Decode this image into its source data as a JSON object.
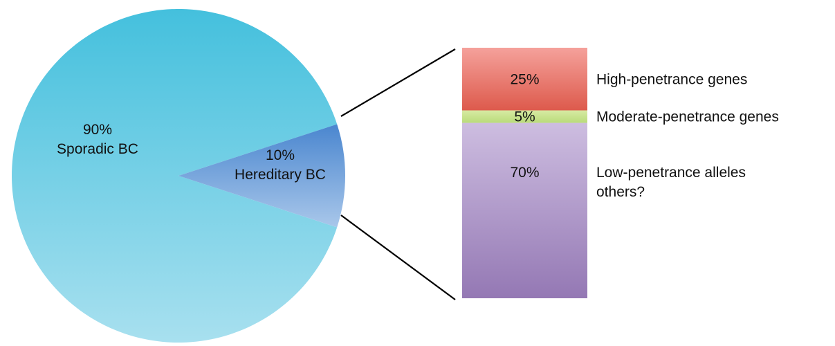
{
  "chart_data": [
    {
      "type": "pie",
      "slices": [
        {
          "label": "Sporadic BC",
          "value": 90,
          "value_label": "90%",
          "color_top": "#44c0dd",
          "color_bottom": "#a8e0ef"
        },
        {
          "label": "Hereditary BC",
          "value": 10,
          "value_label": "10%",
          "color_top": "#4a86cf",
          "color_bottom": "#a9c7ea"
        }
      ]
    },
    {
      "type": "bar",
      "stacked": true,
      "segments": [
        {
          "value": 25,
          "value_label": "25%",
          "label": "High-penetrance genes",
          "color_top": "#f5a19b",
          "color_bottom": "#dd5a4c"
        },
        {
          "value": 5,
          "value_label": "5%",
          "label": "Moderate-penetrance genes",
          "color_top": "#d7eaa3",
          "color_bottom": "#b9db7a"
        },
        {
          "value": 70,
          "value_label": "70%",
          "label": "Low-penetrance alleles",
          "label_line2": "others?",
          "color_top": "#cdbde0",
          "color_bottom": "#9478b4"
        }
      ]
    }
  ]
}
